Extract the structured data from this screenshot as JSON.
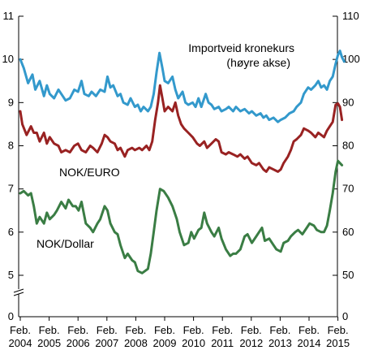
{
  "chart_data": {
    "type": "line",
    "title": "",
    "xlabel": "",
    "ylabel": "",
    "x_ticks": [
      {
        "top": "Feb.",
        "bottom": "2004"
      },
      {
        "top": "Feb.",
        "bottom": "2005"
      },
      {
        "top": "Feb.",
        "bottom": "2006"
      },
      {
        "top": "Feb.",
        "bottom": "2007"
      },
      {
        "top": "Feb.",
        "bottom": "2008"
      },
      {
        "top": "Feb.",
        "bottom": "2009"
      },
      {
        "top": "Feb.",
        "bottom": "2010"
      },
      {
        "top": "Feb.",
        "bottom": "2011"
      },
      {
        "top": "Feb.",
        "bottom": "2012"
      },
      {
        "top": "Feb.",
        "bottom": "2013"
      },
      {
        "top": "Feb.",
        "bottom": "2014"
      },
      {
        "top": "Feb.",
        "bottom": "2015"
      }
    ],
    "x_range": [
      2004.08,
      2015.4
    ],
    "y_left": {
      "range": [
        4.5,
        11
      ],
      "ticks": [
        "5",
        "6",
        "7",
        "8",
        "9",
        "10",
        "11"
      ],
      "zero_label": "0",
      "axis_break": true
    },
    "y_right": {
      "range": [
        45,
        110
      ],
      "ticks": [
        "50",
        "60",
        "70",
        "80",
        "90",
        "100",
        "110"
      ],
      "zero_label": "0"
    },
    "grid": false,
    "annotations": [
      {
        "series": "importveid",
        "lines": [
          "Importveid kronekurs",
          "(høyre akse)"
        ]
      },
      {
        "series": "euro",
        "lines": [
          "NOK/EURO"
        ]
      },
      {
        "series": "dollar",
        "lines": [
          "NOK/Dollar"
        ]
      }
    ],
    "series": [
      {
        "id": "importveid",
        "axis": "right",
        "color": "#3399cc",
        "points": [
          [
            2004.08,
            100
          ],
          [
            2004.2,
            98
          ],
          [
            2004.35,
            94.5
          ],
          [
            2004.5,
            96.5
          ],
          [
            2004.6,
            93
          ],
          [
            2004.75,
            95
          ],
          [
            2004.9,
            91.5
          ],
          [
            2005.0,
            94
          ],
          [
            2005.1,
            92
          ],
          [
            2005.25,
            91
          ],
          [
            2005.4,
            93
          ],
          [
            2005.5,
            92
          ],
          [
            2005.65,
            90.5
          ],
          [
            2005.8,
            91
          ],
          [
            2005.95,
            93
          ],
          [
            2006.08,
            92.5
          ],
          [
            2006.2,
            95
          ],
          [
            2006.3,
            92
          ],
          [
            2006.45,
            91.5
          ],
          [
            2006.55,
            92.5
          ],
          [
            2006.7,
            91.5
          ],
          [
            2006.85,
            93
          ],
          [
            2007.0,
            92.5
          ],
          [
            2007.1,
            96
          ],
          [
            2007.2,
            93.5
          ],
          [
            2007.3,
            94
          ],
          [
            2007.45,
            91.5
          ],
          [
            2007.55,
            92
          ],
          [
            2007.65,
            90
          ],
          [
            2007.8,
            89.5
          ],
          [
            2007.9,
            91
          ],
          [
            2008.05,
            89
          ],
          [
            2008.15,
            89.5
          ],
          [
            2008.25,
            88
          ],
          [
            2008.35,
            89
          ],
          [
            2008.5,
            88
          ],
          [
            2008.6,
            89
          ],
          [
            2008.7,
            92
          ],
          [
            2008.8,
            97
          ],
          [
            2008.9,
            101.5
          ],
          [
            2009.0,
            98
          ],
          [
            2009.08,
            95
          ],
          [
            2009.2,
            94.5
          ],
          [
            2009.35,
            96
          ],
          [
            2009.45,
            93
          ],
          [
            2009.55,
            91
          ],
          [
            2009.7,
            92.5
          ],
          [
            2009.8,
            90
          ],
          [
            2009.9,
            89.5
          ],
          [
            2010.05,
            90
          ],
          [
            2010.15,
            89
          ],
          [
            2010.25,
            91
          ],
          [
            2010.35,
            89
          ],
          [
            2010.5,
            92
          ],
          [
            2010.6,
            90
          ],
          [
            2010.7,
            89.5
          ],
          [
            2010.8,
            88.5
          ],
          [
            2010.95,
            89
          ],
          [
            2011.05,
            88
          ],
          [
            2011.2,
            88.5
          ],
          [
            2011.3,
            89
          ],
          [
            2011.45,
            88
          ],
          [
            2011.55,
            89
          ],
          [
            2011.7,
            88
          ],
          [
            2011.85,
            88.5
          ],
          [
            2012.0,
            87.5
          ],
          [
            2012.1,
            88
          ],
          [
            2012.25,
            87
          ],
          [
            2012.4,
            87.5
          ],
          [
            2012.5,
            86.5
          ],
          [
            2012.6,
            87
          ],
          [
            2012.7,
            86
          ],
          [
            2012.85,
            86.5
          ],
          [
            2013.0,
            85.5
          ],
          [
            2013.1,
            86
          ],
          [
            2013.25,
            86.5
          ],
          [
            2013.4,
            87.5
          ],
          [
            2013.55,
            88
          ],
          [
            2013.65,
            89
          ],
          [
            2013.8,
            90
          ],
          [
            2013.9,
            92
          ],
          [
            2014.05,
            93.5
          ],
          [
            2014.15,
            93
          ],
          [
            2014.3,
            94
          ],
          [
            2014.4,
            95
          ],
          [
            2014.5,
            93.5
          ],
          [
            2014.6,
            94
          ],
          [
            2014.7,
            93
          ],
          [
            2014.8,
            95
          ],
          [
            2014.9,
            96
          ],
          [
            2015.0,
            99
          ],
          [
            2015.08,
            101
          ],
          [
            2015.15,
            102
          ],
          [
            2015.22,
            100.5
          ],
          [
            2015.3,
            99.5
          ]
        ]
      },
      {
        "id": "euro",
        "axis": "left",
        "color": "#992222",
        "points": [
          [
            2004.08,
            8.8
          ],
          [
            2004.15,
            8.5
          ],
          [
            2004.3,
            8.25
          ],
          [
            2004.45,
            8.45
          ],
          [
            2004.55,
            8.3
          ],
          [
            2004.65,
            8.3
          ],
          [
            2004.75,
            8.1
          ],
          [
            2004.9,
            8.3
          ],
          [
            2005.0,
            8.05
          ],
          [
            2005.1,
            8.2
          ],
          [
            2005.25,
            8.05
          ],
          [
            2005.4,
            8.0
          ],
          [
            2005.5,
            7.85
          ],
          [
            2005.65,
            7.9
          ],
          [
            2005.8,
            7.85
          ],
          [
            2005.95,
            8.0
          ],
          [
            2006.08,
            8.05
          ],
          [
            2006.2,
            7.9
          ],
          [
            2006.35,
            7.85
          ],
          [
            2006.5,
            8.0
          ],
          [
            2006.6,
            7.95
          ],
          [
            2006.75,
            7.85
          ],
          [
            2006.9,
            8.05
          ],
          [
            2007.0,
            8.25
          ],
          [
            2007.1,
            8.2
          ],
          [
            2007.2,
            8.1
          ],
          [
            2007.35,
            8.05
          ],
          [
            2007.45,
            7.9
          ],
          [
            2007.55,
            7.95
          ],
          [
            2007.7,
            7.75
          ],
          [
            2007.8,
            7.9
          ],
          [
            2007.95,
            7.95
          ],
          [
            2008.05,
            7.9
          ],
          [
            2008.2,
            7.95
          ],
          [
            2008.3,
            7.9
          ],
          [
            2008.45,
            8.0
          ],
          [
            2008.55,
            7.9
          ],
          [
            2008.65,
            8.1
          ],
          [
            2008.75,
            8.6
          ],
          [
            2008.85,
            9.0
          ],
          [
            2008.92,
            9.4
          ],
          [
            2009.0,
            9.1
          ],
          [
            2009.08,
            8.8
          ],
          [
            2009.2,
            8.9
          ],
          [
            2009.35,
            8.8
          ],
          [
            2009.45,
            9.0
          ],
          [
            2009.55,
            8.7
          ],
          [
            2009.65,
            8.5
          ],
          [
            2009.75,
            8.4
          ],
          [
            2009.9,
            8.3
          ],
          [
            2010.05,
            8.2
          ],
          [
            2010.2,
            8.05
          ],
          [
            2010.3,
            8.0
          ],
          [
            2010.45,
            8.1
          ],
          [
            2010.55,
            7.95
          ],
          [
            2010.7,
            8.05
          ],
          [
            2010.85,
            8.15
          ],
          [
            2010.95,
            8.1
          ],
          [
            2011.05,
            7.85
          ],
          [
            2011.2,
            7.8
          ],
          [
            2011.3,
            7.85
          ],
          [
            2011.45,
            7.8
          ],
          [
            2011.6,
            7.75
          ],
          [
            2011.7,
            7.8
          ],
          [
            2011.85,
            7.7
          ],
          [
            2011.95,
            7.75
          ],
          [
            2012.1,
            7.6
          ],
          [
            2012.25,
            7.55
          ],
          [
            2012.35,
            7.6
          ],
          [
            2012.5,
            7.45
          ],
          [
            2012.6,
            7.4
          ],
          [
            2012.7,
            7.5
          ],
          [
            2012.85,
            7.45
          ],
          [
            2013.0,
            7.4
          ],
          [
            2013.1,
            7.45
          ],
          [
            2013.2,
            7.6
          ],
          [
            2013.35,
            7.75
          ],
          [
            2013.45,
            7.9
          ],
          [
            2013.55,
            8.1
          ],
          [
            2013.65,
            8.15
          ],
          [
            2013.8,
            8.25
          ],
          [
            2013.9,
            8.4
          ],
          [
            2014.05,
            8.35
          ],
          [
            2014.15,
            8.3
          ],
          [
            2014.3,
            8.2
          ],
          [
            2014.4,
            8.3
          ],
          [
            2014.5,
            8.25
          ],
          [
            2014.6,
            8.2
          ],
          [
            2014.7,
            8.35
          ],
          [
            2014.8,
            8.45
          ],
          [
            2014.9,
            8.55
          ],
          [
            2015.0,
            8.95
          ],
          [
            2015.08,
            8.98
          ],
          [
            2015.15,
            8.9
          ],
          [
            2015.22,
            8.6
          ]
        ]
      },
      {
        "id": "dollar",
        "axis": "left",
        "color": "#3a7d44",
        "points": [
          [
            2004.08,
            6.9
          ],
          [
            2004.2,
            6.95
          ],
          [
            2004.35,
            6.85
          ],
          [
            2004.45,
            6.9
          ],
          [
            2004.55,
            6.6
          ],
          [
            2004.65,
            6.2
          ],
          [
            2004.75,
            6.35
          ],
          [
            2004.9,
            6.2
          ],
          [
            2005.0,
            6.45
          ],
          [
            2005.1,
            6.3
          ],
          [
            2005.25,
            6.4
          ],
          [
            2005.35,
            6.5
          ],
          [
            2005.5,
            6.7
          ],
          [
            2005.65,
            6.55
          ],
          [
            2005.75,
            6.75
          ],
          [
            2005.9,
            6.6
          ],
          [
            2006.0,
            6.6
          ],
          [
            2006.1,
            6.5
          ],
          [
            2006.2,
            6.7
          ],
          [
            2006.35,
            6.2
          ],
          [
            2006.5,
            6.1
          ],
          [
            2006.6,
            6.0
          ],
          [
            2006.75,
            6.2
          ],
          [
            2006.85,
            6.3
          ],
          [
            2007.0,
            6.6
          ],
          [
            2007.1,
            6.5
          ],
          [
            2007.2,
            6.2
          ],
          [
            2007.35,
            6.0
          ],
          [
            2007.45,
            5.95
          ],
          [
            2007.55,
            5.7
          ],
          [
            2007.7,
            5.4
          ],
          [
            2007.8,
            5.5
          ],
          [
            2007.95,
            5.35
          ],
          [
            2008.05,
            5.3
          ],
          [
            2008.15,
            5.1
          ],
          [
            2008.3,
            5.05
          ],
          [
            2008.4,
            5.1
          ],
          [
            2008.5,
            5.15
          ],
          [
            2008.6,
            5.5
          ],
          [
            2008.7,
            6.0
          ],
          [
            2008.8,
            6.5
          ],
          [
            2008.92,
            7.0
          ],
          [
            2009.05,
            6.95
          ],
          [
            2009.2,
            6.8
          ],
          [
            2009.35,
            6.6
          ],
          [
            2009.5,
            6.3
          ],
          [
            2009.6,
            6.0
          ],
          [
            2009.75,
            5.7
          ],
          [
            2009.9,
            5.75
          ],
          [
            2010.0,
            6.0
          ],
          [
            2010.1,
            5.85
          ],
          [
            2010.25,
            6.05
          ],
          [
            2010.35,
            6.1
          ],
          [
            2010.45,
            6.45
          ],
          [
            2010.55,
            6.2
          ],
          [
            2010.7,
            6.0
          ],
          [
            2010.8,
            5.9
          ],
          [
            2010.95,
            6.1
          ],
          [
            2011.05,
            5.85
          ],
          [
            2011.2,
            5.6
          ],
          [
            2011.35,
            5.45
          ],
          [
            2011.45,
            5.5
          ],
          [
            2011.55,
            5.5
          ],
          [
            2011.7,
            5.6
          ],
          [
            2011.85,
            5.9
          ],
          [
            2011.95,
            5.95
          ],
          [
            2012.1,
            5.75
          ],
          [
            2012.25,
            5.9
          ],
          [
            2012.35,
            6.0
          ],
          [
            2012.45,
            6.1
          ],
          [
            2012.55,
            5.8
          ],
          [
            2012.7,
            5.85
          ],
          [
            2012.85,
            5.7
          ],
          [
            2012.95,
            5.6
          ],
          [
            2013.1,
            5.55
          ],
          [
            2013.2,
            5.75
          ],
          [
            2013.35,
            5.8
          ],
          [
            2013.45,
            5.9
          ],
          [
            2013.6,
            6.0
          ],
          [
            2013.7,
            6.05
          ],
          [
            2013.85,
            5.95
          ],
          [
            2014.0,
            6.1
          ],
          [
            2014.1,
            6.2
          ],
          [
            2014.25,
            6.15
          ],
          [
            2014.35,
            6.05
          ],
          [
            2014.5,
            6.0
          ],
          [
            2014.6,
            6.0
          ],
          [
            2014.7,
            6.15
          ],
          [
            2014.8,
            6.5
          ],
          [
            2014.9,
            6.9
          ],
          [
            2015.0,
            7.4
          ],
          [
            2015.08,
            7.65
          ],
          [
            2015.15,
            7.6
          ],
          [
            2015.22,
            7.55
          ]
        ]
      }
    ]
  }
}
